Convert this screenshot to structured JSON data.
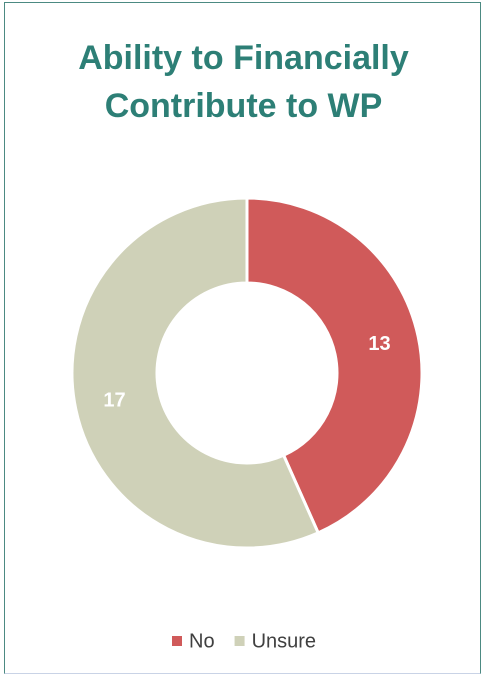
{
  "chart_data": {
    "type": "donut",
    "title": "Ability to Financially Contribute to WP",
    "categories": [
      "No",
      "Unsure"
    ],
    "values": [
      13,
      17
    ],
    "colors": [
      "#d05a5a",
      "#cfd1b8"
    ]
  }
}
